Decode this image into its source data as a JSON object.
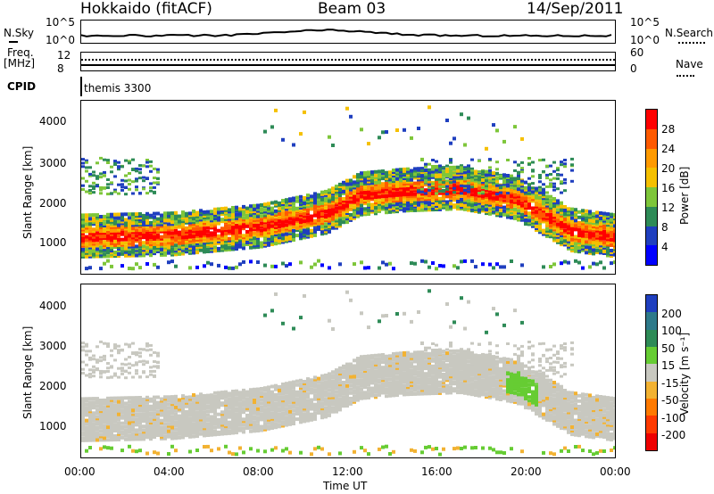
{
  "header": {
    "station": "Hokkaido (fitACF)",
    "beam": "Beam 03",
    "date": "14/Sep/2011"
  },
  "top_panels": {
    "nsky_label": "N.Sky",
    "nsky_top": "10^5",
    "nsky_bottom": "10^0",
    "nsearch_label": "N.Search",
    "nsearch_top": "10^5",
    "nsearch_bottom": "10^0",
    "freq_label": "Freq.",
    "freq_unit": "[MHz]",
    "freq_top": "12",
    "freq_bottom": "8",
    "nave_label": "Nave",
    "nave_top": "60",
    "nave_bottom": "0",
    "cpid_label": "CPID",
    "cpid_value": "themis 3300"
  },
  "power_panel": {
    "ylabel": "Slant Range [km]",
    "colorbar_label": "Power [dB]",
    "colorbar_ticks": [
      "28",
      "24",
      "20",
      "16",
      "12",
      "8",
      "4"
    ],
    "colorbar_colors": [
      "#ff0000",
      "#ff5a00",
      "#ff9a00",
      "#f5c000",
      "#7ec63a",
      "#2e8b57",
      "#1f3fbf",
      "#0000ff"
    ]
  },
  "velocity_panel": {
    "ylabel": "Slant Range [km]",
    "colorbar_label": "Velocity [m s⁻¹]",
    "colorbar_ticks": [
      "200",
      "100",
      "50",
      "15",
      "-15",
      "-50",
      "-100",
      "-200"
    ],
    "colorbar_colors": [
      "#1f3fbf",
      "#2e7a8a",
      "#2e8b57",
      "#66cc33",
      "#c8c8c0",
      "#f2b232",
      "#ff7a00",
      "#ff3a00",
      "#ee0000"
    ]
  },
  "xaxis": {
    "label": "Time UT",
    "ticks": [
      "00:00",
      "04:00",
      "08:00",
      "12:00",
      "16:00",
      "20:00",
      "00:00"
    ]
  },
  "chart_data": [
    {
      "type": "heatmap",
      "title": "Power",
      "ylabel": "Slant Range [km]",
      "xlabel": "Time UT",
      "ylim": [
        180,
        4500
      ],
      "yticks": [
        1000,
        2000,
        3000,
        4000
      ],
      "x_ticks": [
        "00:00",
        "04:00",
        "08:00",
        "12:00",
        "16:00",
        "20:00",
        "00:00"
      ],
      "colorbar": {
        "label": "Power [dB]",
        "ticks": [
          28,
          24,
          20,
          16,
          12,
          8,
          4
        ]
      },
      "main_band_center_km": [
        {
          "t": 0,
          "km": 1150
        },
        {
          "t": 4,
          "km": 1200
        },
        {
          "t": 8,
          "km": 1400
        },
        {
          "t": 11,
          "km": 1750
        },
        {
          "t": 12.5,
          "km": 2200
        },
        {
          "t": 14.5,
          "km": 2300
        },
        {
          "t": 17,
          "km": 2350
        },
        {
          "t": 19.5,
          "km": 2100
        },
        {
          "t": 22,
          "km": 1300
        },
        {
          "t": 24,
          "km": 1150
        }
      ]
    },
    {
      "type": "heatmap",
      "title": "Velocity",
      "ylabel": "Slant Range [km]",
      "xlabel": "Time UT",
      "ylim": [
        180,
        4500
      ],
      "yticks": [
        1000,
        2000,
        3000,
        4000
      ],
      "x_ticks": [
        "00:00",
        "04:00",
        "08:00",
        "12:00",
        "16:00",
        "20:00",
        "00:00"
      ],
      "colorbar": {
        "label": "Velocity [m s-1]",
        "ticks": [
          200,
          100,
          50,
          15,
          -15,
          -50,
          -100,
          -200
        ]
      }
    }
  ]
}
